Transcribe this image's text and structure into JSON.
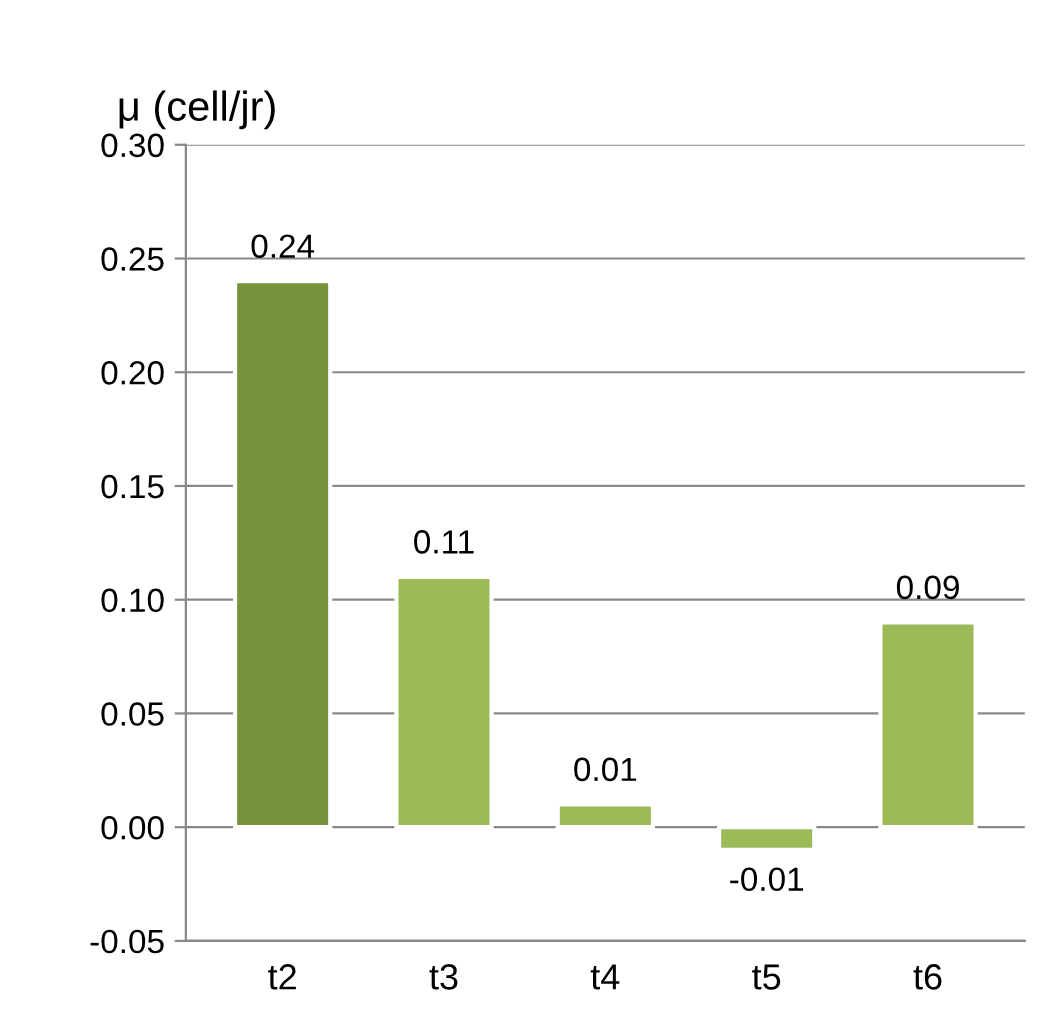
{
  "chart_data": {
    "type": "bar",
    "ylabel": "μ (cell/jr)",
    "categories": [
      "t2",
      "t3",
      "t4",
      "t5",
      "t6"
    ],
    "values": [
      0.24,
      0.11,
      0.01,
      -0.01,
      0.09
    ],
    "colors": [
      "#77933c",
      "#9bbb59",
      "#9bbb59",
      "#9bbb59",
      "#9bbb59"
    ],
    "ylim": [
      -0.05,
      0.3
    ],
    "yticks": [
      {
        "value": -0.05,
        "label": "-0.05"
      },
      {
        "value": 0,
        "label": "0.00"
      },
      {
        "value": 0.05,
        "label": "0.05"
      },
      {
        "value": 0.1,
        "label": "0.10"
      },
      {
        "value": 0.15,
        "label": "0.15"
      },
      {
        "value": 0.2,
        "label": "0.20"
      },
      {
        "value": 0.25,
        "label": "0.25"
      },
      {
        "value": 0.3,
        "label": "0.30"
      }
    ],
    "grid": "y",
    "data_labels": true
  }
}
